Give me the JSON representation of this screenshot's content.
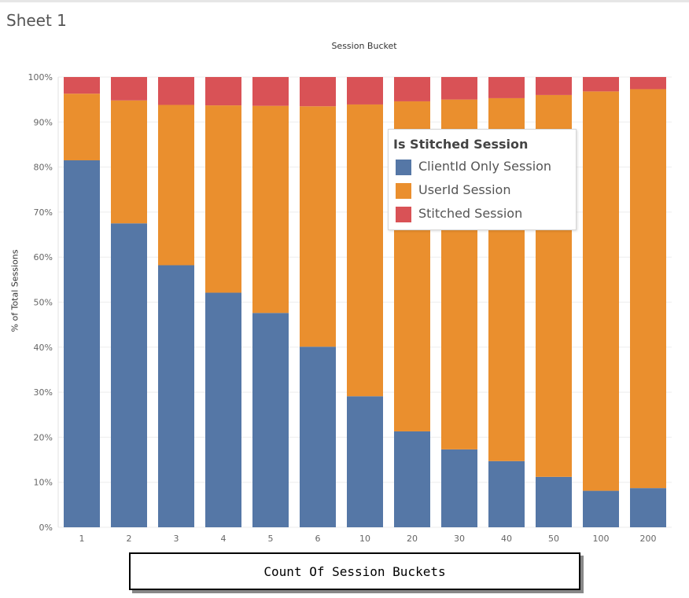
{
  "sheet": {
    "title": "Sheet 1"
  },
  "chart_data": {
    "type": "bar",
    "stacked": true,
    "normalized_percent": true,
    "column_header": "Session Bucket",
    "xlabel": "Count Of Session Buckets",
    "ylabel": "% of Total Sessions",
    "ylim": [
      0,
      100
    ],
    "y_ticks": [
      "0%",
      "10%",
      "20%",
      "30%",
      "40%",
      "50%",
      "60%",
      "70%",
      "80%",
      "90%",
      "100%"
    ],
    "categories": [
      "1",
      "2",
      "3",
      "4",
      "5",
      "6",
      "10",
      "20",
      "30",
      "40",
      "50",
      "100",
      "200"
    ],
    "grid": true,
    "legend": {
      "title": "Is Stitched Session",
      "position": "inside-top-right"
    },
    "series": [
      {
        "name": "ClientId Only Session",
        "color": "#5577a6",
        "values": [
          81.5,
          67.5,
          58.2,
          52.1,
          47.6,
          40.1,
          29.1,
          21.3,
          17.3,
          14.7,
          11.2,
          8.1,
          8.7
        ]
      },
      {
        "name": "UserId Session",
        "color": "#ea8f2e",
        "values": [
          14.8,
          27.3,
          35.6,
          41.6,
          46.0,
          53.4,
          64.8,
          73.3,
          77.7,
          80.6,
          84.8,
          88.7,
          88.6
        ]
      },
      {
        "name": "Stitched Session",
        "color": "#d95256",
        "values": [
          3.7,
          5.2,
          6.2,
          6.3,
          6.4,
          6.5,
          6.1,
          5.4,
          5.0,
          4.7,
          4.0,
          3.2,
          2.7
        ]
      }
    ]
  }
}
